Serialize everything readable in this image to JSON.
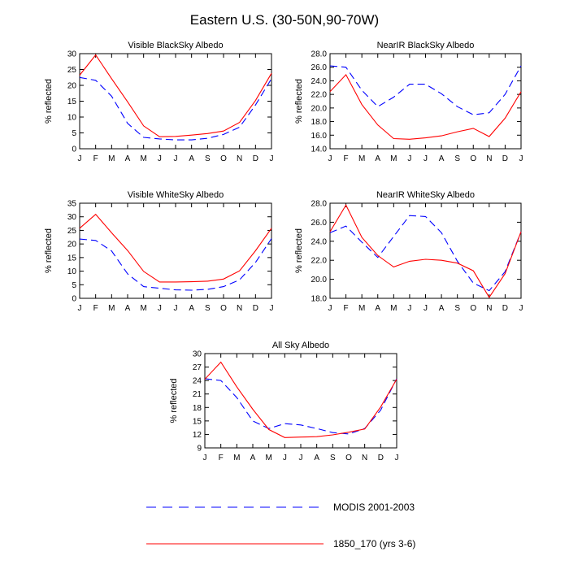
{
  "page": {
    "title": "Eastern U.S. (30-50N,90-70W)"
  },
  "colors": {
    "modis": "#0000ff",
    "model": "#ff0000",
    "frame": "#000000"
  },
  "legend": {
    "entries": [
      {
        "label": "MODIS 2001-2003",
        "color": "#0000ff",
        "dash": "dashed"
      },
      {
        "label": "1850_170 (yrs 3-6)",
        "color": "#ff0000",
        "dash": "solid"
      }
    ]
  },
  "chart_data": [
    {
      "type": "line",
      "title": "Visible BlackSky Albedo",
      "ylabel": "% reflected",
      "categories": [
        "J",
        "F",
        "M",
        "A",
        "M",
        "J",
        "J",
        "A",
        "S",
        "O",
        "N",
        "D",
        "J"
      ],
      "ylim": [
        0,
        30
      ],
      "yticks": [
        "0",
        "5",
        "10",
        "15",
        "20",
        "25",
        "30"
      ],
      "series": [
        {
          "name": "MODIS 2001-2003",
          "values": [
            22.5,
            21.6,
            16.6,
            8.0,
            3.6,
            3.1,
            2.8,
            2.8,
            3.3,
            4.5,
            6.8,
            13.8,
            22.1
          ]
        },
        {
          "name": "1850_170 (yrs 3-6)",
          "values": [
            23.2,
            29.6,
            22.1,
            14.8,
            7.2,
            3.8,
            3.9,
            4.3,
            4.8,
            5.6,
            8.3,
            15.2,
            23.8
          ]
        }
      ]
    },
    {
      "type": "line",
      "title": "NearIR BlackSky Albedo",
      "ylabel": "% reflected",
      "categories": [
        "J",
        "F",
        "M",
        "A",
        "M",
        "J",
        "J",
        "A",
        "S",
        "O",
        "N",
        "D",
        "J"
      ],
      "ylim": [
        14,
        28
      ],
      "yticks": [
        "14.0",
        "16.0",
        "18.0",
        "20.0",
        "22.0",
        "24.0",
        "26.0",
        "28.0"
      ],
      "series": [
        {
          "name": "MODIS 2001-2003",
          "values": [
            26.2,
            26.0,
            22.6,
            20.2,
            21.6,
            23.5,
            23.5,
            22.1,
            20.2,
            19.0,
            19.3,
            22.0,
            26.2
          ]
        },
        {
          "name": "1850_170 (yrs 3-6)",
          "values": [
            22.4,
            24.9,
            20.5,
            17.5,
            15.5,
            15.4,
            15.6,
            15.9,
            16.5,
            17.0,
            15.8,
            18.5,
            22.4
          ]
        }
      ]
    },
    {
      "type": "line",
      "title": "Visible WhiteSky Albedo",
      "ylabel": "% reflected",
      "categories": [
        "J",
        "F",
        "M",
        "A",
        "M",
        "J",
        "J",
        "A",
        "S",
        "O",
        "N",
        "D",
        "J"
      ],
      "ylim": [
        0,
        35
      ],
      "yticks": [
        "0",
        "5",
        "10",
        "15",
        "20",
        "25",
        "30",
        "35"
      ],
      "series": [
        {
          "name": "MODIS 2001-2003",
          "values": [
            21.8,
            21.3,
            17.4,
            9.0,
            4.3,
            3.7,
            3.1,
            3.0,
            3.3,
            4.3,
            6.8,
            13.2,
            22.0
          ]
        },
        {
          "name": "1850_170 (yrs 3-6)",
          "values": [
            25.8,
            30.9,
            24.1,
            17.6,
            9.9,
            6.0,
            6.0,
            6.1,
            6.3,
            7.1,
            10.1,
            17.5,
            25.8
          ]
        }
      ]
    },
    {
      "type": "line",
      "title": "NearIR WhiteSky Albedo",
      "ylabel": "% reflected",
      "categories": [
        "J",
        "F",
        "M",
        "A",
        "M",
        "J",
        "J",
        "A",
        "S",
        "O",
        "N",
        "D",
        "J"
      ],
      "ylim": [
        18,
        28
      ],
      "yticks": [
        "18.0",
        "20.0",
        "22.0",
        "24.0",
        "26.0",
        "28.0"
      ],
      "series": [
        {
          "name": "MODIS 2001-2003",
          "values": [
            24.9,
            25.6,
            23.9,
            22.3,
            24.5,
            26.7,
            26.6,
            24.9,
            21.9,
            19.6,
            18.8,
            20.8,
            25.0
          ]
        },
        {
          "name": "1850_170 (yrs 3-6)",
          "values": [
            25.0,
            27.8,
            24.4,
            22.5,
            21.3,
            21.9,
            22.1,
            22.0,
            21.7,
            20.9,
            18.1,
            20.6,
            25.0
          ]
        }
      ]
    },
    {
      "type": "line",
      "title": "All Sky Albedo",
      "ylabel": "% reflected",
      "categories": [
        "J",
        "F",
        "M",
        "A",
        "M",
        "J",
        "J",
        "A",
        "S",
        "O",
        "N",
        "D",
        "J"
      ],
      "ylim": [
        9,
        30
      ],
      "yticks": [
        "9",
        "12",
        "15",
        "18",
        "21",
        "24",
        "27",
        "30"
      ],
      "series": [
        {
          "name": "MODIS 2001-2003",
          "values": [
            24.4,
            24.0,
            20.2,
            15.0,
            13.3,
            14.4,
            14.1,
            13.3,
            12.4,
            12.1,
            13.3,
            17.4,
            24.4
          ]
        },
        {
          "name": "1850_170 (yrs 3-6)",
          "values": [
            24.3,
            28.1,
            22.6,
            17.6,
            13.1,
            11.3,
            11.4,
            11.5,
            11.9,
            12.5,
            13.2,
            18.1,
            24.3
          ]
        }
      ]
    }
  ]
}
